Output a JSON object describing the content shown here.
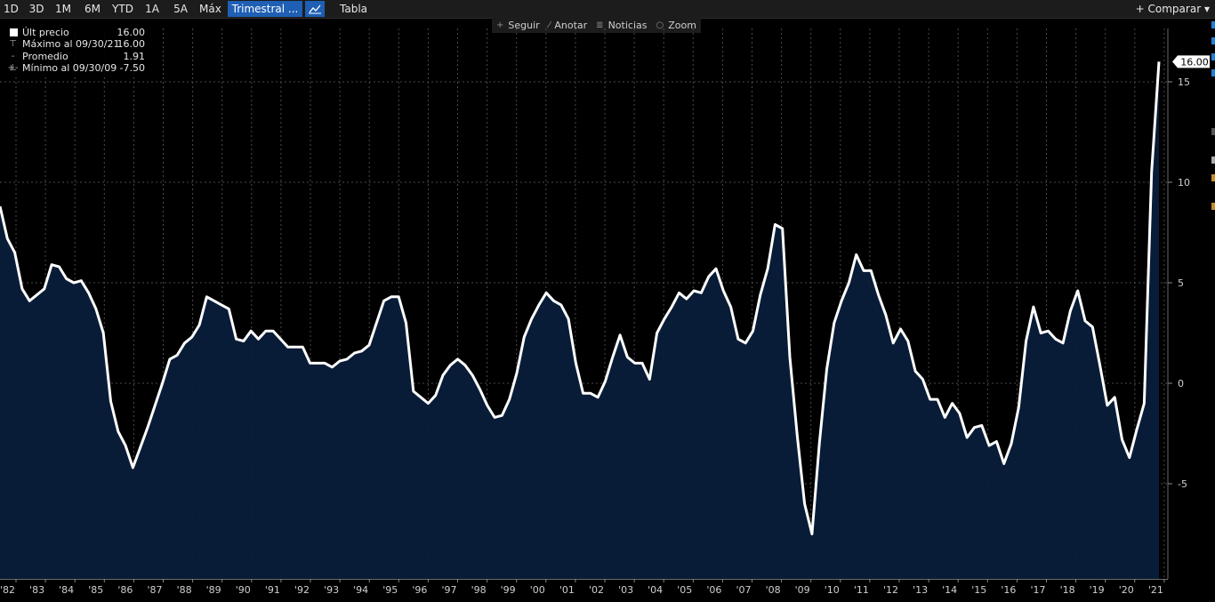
{
  "toolbar": {
    "ranges": [
      "1D",
      "3D",
      "1M",
      "6M",
      "YTD",
      "1A",
      "5A",
      "Máx",
      "Trimestral ..."
    ],
    "active_range": "Trimestral ...",
    "tabla_label": "Tabla",
    "compare_label": "+ Comparar",
    "compare_arrow": "▾"
  },
  "tools": [
    {
      "icon": "crosshair-icon",
      "glyph": "+",
      "label": "Seguir"
    },
    {
      "icon": "pencil-icon",
      "glyph": "⁄",
      "label": "Anotar"
    },
    {
      "icon": "news-icon",
      "glyph": "≣",
      "label": "Noticias"
    },
    {
      "icon": "magnifier-icon",
      "glyph": "○",
      "label": "Zoom"
    }
  ],
  "legend": {
    "last_label": "Últ precio",
    "last_value": "16.00",
    "max_label": "Máximo al 09/30/21",
    "max_value": "16.00",
    "avg_label": "Promedio",
    "avg_value": "1.91",
    "min_label": "Mínimo al 09/30/09",
    "min_value": "-7.50"
  },
  "colors": {
    "background": "#000000",
    "line": "#ffffff",
    "fill": "#0a1e3a",
    "accent": "#1f5fb4",
    "grid": "#4a4a4a"
  },
  "chart_data": {
    "type": "area",
    "x_start": "1982",
    "x_end": "2021",
    "x_ticks": [
      "'82",
      "'83",
      "'84",
      "'85",
      "'86",
      "'87",
      "'88",
      "'89",
      "'90",
      "'91",
      "'92",
      "'93",
      "'94",
      "'95",
      "'96",
      "'97",
      "'98",
      "'99",
      "'00",
      "'01",
      "'02",
      "'03",
      "'04",
      "'05",
      "'06",
      "'07",
      "'08",
      "'09",
      "'10",
      "'11",
      "'12",
      "'13",
      "'14",
      "'15",
      "'16",
      "'17",
      "'18",
      "'19",
      "'20",
      "'21"
    ],
    "y_ticks": [
      -5,
      0,
      5,
      10,
      15
    ],
    "ylim": [
      -8.5,
      17.5
    ],
    "last_value_label": "16.00",
    "values": [
      8.8,
      7.2,
      6.5,
      4.7,
      4.1,
      4.4,
      4.7,
      5.9,
      5.8,
      5.2,
      5.0,
      5.1,
      4.5,
      3.7,
      2.5,
      -0.9,
      -2.4,
      -3.1,
      -4.2,
      -3.2,
      -2.2,
      -1.1,
      0.0,
      1.2,
      1.4,
      2.0,
      2.3,
      2.9,
      4.3,
      4.1,
      3.9,
      3.7,
      2.2,
      2.1,
      2.6,
      2.2,
      2.6,
      2.6,
      2.2,
      1.8,
      1.8,
      1.8,
      1.0,
      1.0,
      1.0,
      0.8,
      1.1,
      1.2,
      1.5,
      1.6,
      1.9,
      3.0,
      4.1,
      4.3,
      4.3,
      3.0,
      -0.4,
      -0.7,
      -1.0,
      -0.6,
      0.4,
      0.9,
      1.2,
      0.9,
      0.4,
      -0.3,
      -1.1,
      -1.7,
      -1.6,
      -0.8,
      0.5,
      2.3,
      3.2,
      3.9,
      4.5,
      4.1,
      3.9,
      3.2,
      1.0,
      -0.5,
      -0.5,
      -0.7,
      0.1,
      1.3,
      2.4,
      1.3,
      1.0,
      1.0,
      0.2,
      2.5,
      3.2,
      3.8,
      4.5,
      4.2,
      4.6,
      4.5,
      5.3,
      5.7,
      4.6,
      3.8,
      2.2,
      2.0,
      2.6,
      4.4,
      5.7,
      7.9,
      7.7,
      1.3,
      -2.6,
      -6.0,
      -7.5,
      -3.0,
      0.7,
      3.0,
      4.1,
      5.0,
      6.4,
      5.6,
      5.6,
      4.4,
      3.4,
      2.0,
      2.7,
      2.1,
      0.6,
      0.2,
      -0.8,
      -0.8,
      -1.7,
      -1.0,
      -1.5,
      -2.7,
      -2.2,
      -2.1,
      -3.1,
      -2.9,
      -4.0,
      -3.0,
      -1.2,
      2.1,
      3.8,
      2.5,
      2.6,
      2.2,
      2.0,
      3.6,
      4.6,
      3.1,
      2.8,
      0.9,
      -1.1,
      -0.7,
      -2.8,
      -3.7,
      -2.3,
      -1.0,
      10.5,
      16.0
    ]
  }
}
